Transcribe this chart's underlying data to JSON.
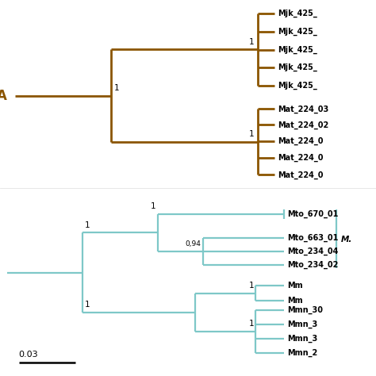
{
  "bg_color": "#ffffff",
  "top_tree": {
    "color": "#8B5500",
    "label": "A",
    "linewidth": 2.0,
    "mjk_labels": [
      "Mjk_425_",
      "Mjk_425_",
      "Mjk_425_",
      "Mjk_425_",
      "Mjk_425_"
    ],
    "mat_labels": [
      "Mat_224_03",
      "Mat_224_02",
      "Mat_224_0",
      "Mat_224_0",
      "Mat_224_0"
    ]
  },
  "bottom_tree": {
    "color": "#7EC8C8",
    "linewidth": 1.6,
    "mto_labels": [
      "Mto_670_01",
      "Mto_663_01",
      "Mto_234_04",
      "Mto_234_02"
    ],
    "mm_labels": [
      "Mm",
      "Mm"
    ],
    "mmn_labels": [
      "Mmn_30",
      "Mmn_3",
      "Mmn_3",
      "Mmn_2"
    ],
    "scale_label": "0.03"
  }
}
